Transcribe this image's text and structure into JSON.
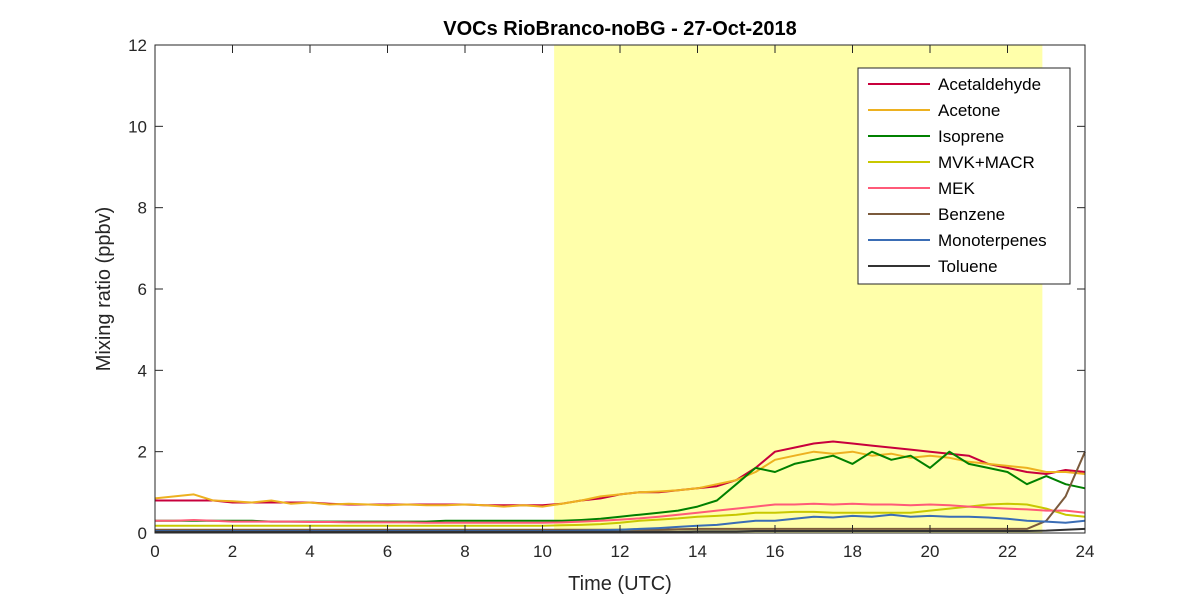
{
  "chart_data": {
    "type": "line",
    "title": "VOCs RioBranco-noBG - 27-Oct-2018",
    "xlabel": "Time (UTC)",
    "ylabel": "Mixing ratio (ppbv)",
    "xlim": [
      0,
      24
    ],
    "ylim": [
      0,
      12
    ],
    "xticks": [
      0,
      2,
      4,
      6,
      8,
      10,
      12,
      14,
      16,
      18,
      20,
      22,
      24
    ],
    "yticks": [
      0,
      2,
      4,
      6,
      8,
      10,
      12
    ],
    "grid": false,
    "legend_position": "top-right",
    "highlight_span": {
      "x_start": 10.3,
      "x_end": 22.9,
      "color": "#ffffaa"
    },
    "x": [
      0,
      0.5,
      1,
      1.5,
      2,
      2.5,
      3,
      3.5,
      4,
      4.5,
      5,
      5.5,
      6,
      6.5,
      7,
      7.5,
      8,
      8.5,
      9,
      9.5,
      10,
      10.5,
      11,
      11.5,
      12,
      12.5,
      13,
      13.5,
      14,
      14.5,
      15,
      15.5,
      16,
      16.5,
      17,
      17.5,
      18,
      18.5,
      19,
      19.5,
      20,
      20.5,
      21,
      21.5,
      22,
      22.5,
      23,
      23.5,
      24
    ],
    "series": [
      {
        "name": "Acetaldehyde",
        "color": "#c8003c",
        "values": [
          0.8,
          0.8,
          0.8,
          0.8,
          0.75,
          0.75,
          0.75,
          0.75,
          0.75,
          0.72,
          0.7,
          0.7,
          0.7,
          0.7,
          0.7,
          0.7,
          0.7,
          0.68,
          0.68,
          0.68,
          0.68,
          0.72,
          0.8,
          0.85,
          0.95,
          1.0,
          1.0,
          1.05,
          1.1,
          1.15,
          1.3,
          1.6,
          2.0,
          2.1,
          2.2,
          2.25,
          2.2,
          2.15,
          2.1,
          2.05,
          2.0,
          1.95,
          1.9,
          1.7,
          1.6,
          1.5,
          1.45,
          1.55,
          1.5
        ]
      },
      {
        "name": "Acetone",
        "color": "#edb120",
        "values": [
          0.85,
          0.9,
          0.95,
          0.8,
          0.78,
          0.75,
          0.8,
          0.72,
          0.75,
          0.7,
          0.72,
          0.7,
          0.68,
          0.7,
          0.68,
          0.68,
          0.7,
          0.68,
          0.65,
          0.68,
          0.65,
          0.72,
          0.8,
          0.9,
          0.95,
          1.0,
          1.02,
          1.05,
          1.1,
          1.2,
          1.3,
          1.5,
          1.8,
          1.9,
          2.0,
          1.95,
          2.0,
          1.9,
          1.95,
          1.85,
          1.9,
          1.85,
          1.75,
          1.7,
          1.65,
          1.6,
          1.5,
          1.5,
          1.45
        ]
      },
      {
        "name": "Isoprene",
        "color": "#008000",
        "values": [
          0.3,
          0.3,
          0.3,
          0.3,
          0.3,
          0.3,
          0.28,
          0.28,
          0.28,
          0.28,
          0.28,
          0.28,
          0.28,
          0.28,
          0.28,
          0.3,
          0.3,
          0.3,
          0.3,
          0.3,
          0.3,
          0.3,
          0.32,
          0.35,
          0.4,
          0.45,
          0.5,
          0.55,
          0.65,
          0.8,
          1.2,
          1.6,
          1.5,
          1.7,
          1.8,
          1.9,
          1.7,
          2.0,
          1.8,
          1.9,
          1.6,
          2.0,
          1.7,
          1.6,
          1.5,
          1.2,
          1.4,
          1.2,
          1.1
        ]
      },
      {
        "name": "MVK+MACR",
        "color": "#c8c800",
        "values": [
          0.18,
          0.18,
          0.18,
          0.18,
          0.18,
          0.18,
          0.18,
          0.18,
          0.18,
          0.18,
          0.18,
          0.18,
          0.18,
          0.18,
          0.18,
          0.18,
          0.18,
          0.18,
          0.18,
          0.18,
          0.18,
          0.19,
          0.2,
          0.22,
          0.25,
          0.3,
          0.33,
          0.36,
          0.4,
          0.42,
          0.45,
          0.5,
          0.5,
          0.52,
          0.52,
          0.5,
          0.5,
          0.5,
          0.5,
          0.5,
          0.55,
          0.6,
          0.65,
          0.7,
          0.72,
          0.7,
          0.6,
          0.45,
          0.4
        ]
      },
      {
        "name": "MEK",
        "color": "#ff5a78",
        "values": [
          0.3,
          0.3,
          0.32,
          0.3,
          0.28,
          0.28,
          0.28,
          0.28,
          0.27,
          0.27,
          0.26,
          0.26,
          0.26,
          0.26,
          0.25,
          0.25,
          0.25,
          0.25,
          0.25,
          0.25,
          0.25,
          0.26,
          0.28,
          0.3,
          0.33,
          0.36,
          0.4,
          0.45,
          0.5,
          0.55,
          0.6,
          0.65,
          0.7,
          0.7,
          0.72,
          0.7,
          0.72,
          0.7,
          0.7,
          0.68,
          0.7,
          0.68,
          0.65,
          0.62,
          0.6,
          0.58,
          0.55,
          0.55,
          0.5
        ]
      },
      {
        "name": "Benzene",
        "color": "#7b5a3c",
        "values": [
          0.08,
          0.08,
          0.08,
          0.08,
          0.08,
          0.08,
          0.08,
          0.08,
          0.08,
          0.08,
          0.08,
          0.08,
          0.08,
          0.08,
          0.08,
          0.08,
          0.08,
          0.08,
          0.08,
          0.08,
          0.08,
          0.08,
          0.08,
          0.08,
          0.08,
          0.08,
          0.08,
          0.09,
          0.1,
          0.1,
          0.1,
          0.1,
          0.1,
          0.1,
          0.1,
          0.1,
          0.1,
          0.1,
          0.1,
          0.1,
          0.1,
          0.1,
          0.1,
          0.1,
          0.1,
          0.1,
          0.3,
          0.9,
          2.0
        ]
      },
      {
        "name": "Monoterpenes",
        "color": "#3a6db5",
        "values": [
          0.05,
          0.05,
          0.05,
          0.05,
          0.05,
          0.05,
          0.05,
          0.05,
          0.05,
          0.05,
          0.05,
          0.05,
          0.05,
          0.05,
          0.05,
          0.05,
          0.05,
          0.05,
          0.05,
          0.05,
          0.05,
          0.05,
          0.06,
          0.07,
          0.08,
          0.1,
          0.12,
          0.15,
          0.18,
          0.2,
          0.25,
          0.3,
          0.3,
          0.35,
          0.4,
          0.38,
          0.42,
          0.4,
          0.45,
          0.4,
          0.42,
          0.4,
          0.4,
          0.38,
          0.35,
          0.3,
          0.28,
          0.25,
          0.3
        ]
      },
      {
        "name": "Toluene",
        "color": "#333333",
        "values": [
          0.03,
          0.03,
          0.03,
          0.03,
          0.03,
          0.03,
          0.03,
          0.03,
          0.03,
          0.03,
          0.03,
          0.03,
          0.03,
          0.03,
          0.03,
          0.03,
          0.03,
          0.03,
          0.03,
          0.03,
          0.03,
          0.03,
          0.03,
          0.03,
          0.03,
          0.03,
          0.03,
          0.03,
          0.04,
          0.04,
          0.04,
          0.05,
          0.05,
          0.05,
          0.05,
          0.05,
          0.05,
          0.05,
          0.05,
          0.05,
          0.05,
          0.05,
          0.05,
          0.05,
          0.05,
          0.05,
          0.06,
          0.08,
          0.1
        ]
      }
    ]
  }
}
